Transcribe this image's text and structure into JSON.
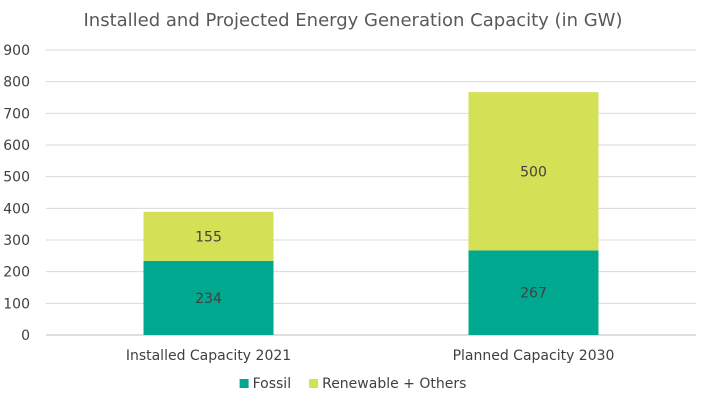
{
  "chart_data": {
    "type": "bar",
    "stacked": true,
    "title": "Installed and Projected Energy Generation Capacity (in GW)",
    "xlabel": "",
    "ylabel": "",
    "ylim": [
      0,
      900
    ],
    "yticks": [
      0,
      100,
      200,
      300,
      400,
      500,
      600,
      700,
      800,
      900
    ],
    "grid": true,
    "legend_position": "bottom",
    "categories": [
      "Installed Capacity 2021",
      "Planned Capacity 2030"
    ],
    "series": [
      {
        "name": "Fossil",
        "color": "#00a88f",
        "values": [
          234,
          267
        ]
      },
      {
        "name": "Renewable + Others",
        "color": "#d4e157",
        "values": [
          155,
          500
        ]
      }
    ]
  }
}
